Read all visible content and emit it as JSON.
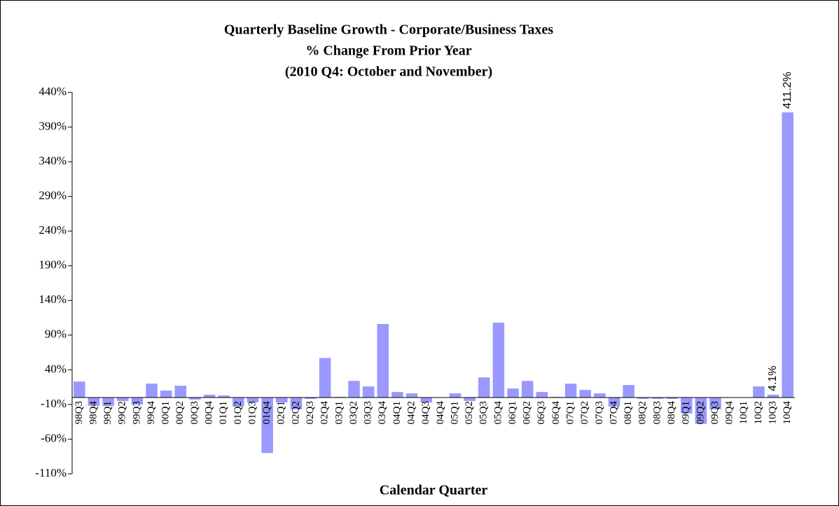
{
  "chart_data": {
    "type": "bar",
    "title_lines": [
      "Quarterly Baseline Growth - Corporate/Business Taxes",
      "% Change From Prior Year",
      "(2010 Q4: October and November)"
    ],
    "x_label": "Calendar Quarter",
    "categories": [
      "98Q3",
      "98Q4",
      "99Q1",
      "99Q2",
      "99Q3",
      "99Q4",
      "00Q1",
      "00Q2",
      "00Q3",
      "00Q4",
      "01Q1",
      "01Q2",
      "01Q3",
      "01Q4",
      "02Q1",
      "02Q2",
      "02Q3",
      "02Q4",
      "03Q1",
      "03Q2",
      "03Q3",
      "03Q4",
      "04Q1",
      "04Q2",
      "04Q3",
      "04Q4",
      "05Q1",
      "05Q2",
      "05Q3",
      "05Q4",
      "06Q1",
      "06Q2",
      "06Q3",
      "06Q4",
      "07Q1",
      "07Q2",
      "07Q3",
      "07Q4",
      "08Q1",
      "08Q2",
      "08Q3",
      "08Q4",
      "09Q1",
      "09Q2",
      "09Q3",
      "09Q4",
      "10Q1",
      "10Q2",
      "10Q3",
      "10Q4"
    ],
    "values": [
      23,
      -12,
      -12,
      -5,
      -10,
      20,
      10,
      17,
      -3,
      4,
      3,
      -13,
      -7,
      -80,
      -7,
      -17,
      -2,
      57,
      1,
      24,
      16,
      106,
      8,
      6,
      -7,
      0,
      6,
      -5,
      29,
      108,
      13,
      24,
      8,
      1,
      20,
      11,
      6,
      -13,
      18,
      -2,
      -2,
      -2,
      -23,
      -38,
      -17,
      0,
      0,
      16,
      4.1,
      411.2
    ],
    "value_labels": [
      null,
      null,
      null,
      null,
      null,
      null,
      null,
      null,
      null,
      null,
      null,
      null,
      null,
      null,
      null,
      null,
      null,
      null,
      null,
      null,
      null,
      null,
      null,
      null,
      null,
      null,
      null,
      null,
      null,
      null,
      null,
      null,
      null,
      null,
      null,
      null,
      null,
      null,
      null,
      null,
      null,
      null,
      null,
      null,
      null,
      null,
      null,
      null,
      "4.1%",
      "411.2%"
    ],
    "color": "#9999ff",
    "ylim": [
      -110,
      440
    ],
    "yticks": [
      {
        "value": -110,
        "label": "-110%"
      },
      {
        "value": -60,
        "label": "-60%"
      },
      {
        "value": -10,
        "label": "-10%"
      },
      {
        "value": 40,
        "label": "40%"
      },
      {
        "value": 90,
        "label": "90%"
      },
      {
        "value": 140,
        "label": "140%"
      },
      {
        "value": 190,
        "label": "190%"
      },
      {
        "value": 240,
        "label": "240%"
      },
      {
        "value": 290,
        "label": "290%"
      },
      {
        "value": 340,
        "label": "340%"
      },
      {
        "value": 390,
        "label": "390%"
      },
      {
        "value": 440,
        "label": "440%"
      }
    ],
    "grid": false
  }
}
